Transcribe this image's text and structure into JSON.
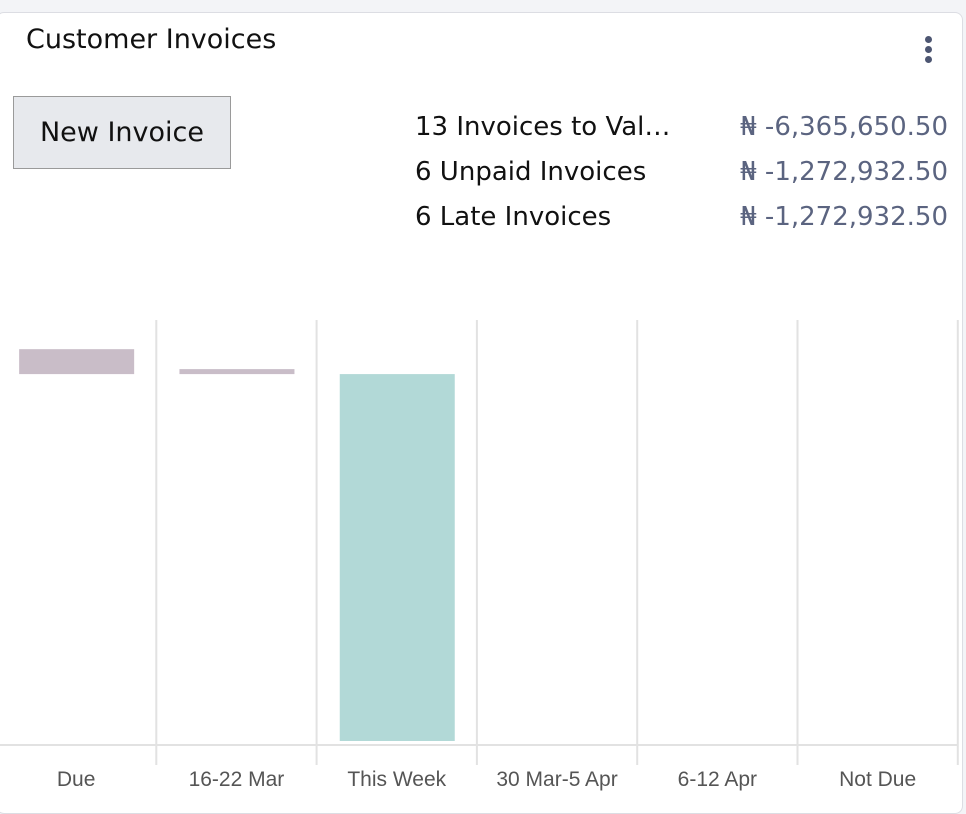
{
  "header": {
    "title": "Customer Invoices",
    "menu_icon": "kebab-vertical-icon"
  },
  "actions": {
    "new_invoice": "New Invoice"
  },
  "stats": [
    {
      "label": "13 Invoices to Validate",
      "display_label": "13 Invoices to Vali…",
      "amount": "₦ -6,365,650.50"
    },
    {
      "label": "6 Unpaid Invoices",
      "display_label": "6 Unpaid Invoices",
      "amount": "₦ -1,272,932.50"
    },
    {
      "label": "6 Late Invoices",
      "display_label": "6 Late Invoices",
      "amount": "₦ -1,272,932.50"
    }
  ],
  "chart_data": {
    "type": "bar",
    "title": "",
    "xlabel": "",
    "ylabel": "",
    "categories": [
      "Due",
      "16-22 Mar",
      "This Week",
      "30 Mar-5 Apr",
      "6-12 Apr",
      "Not Due"
    ],
    "values": [
      1060000,
      212000,
      -15600000,
      0,
      0,
      0
    ],
    "colors": [
      "#c9bdc8",
      "#c9bdc8",
      "#b2d9d7",
      "#c9bdc8",
      "#c9bdc8",
      "#c9bdc8"
    ],
    "ylim": [
      -15600000,
      2300000
    ],
    "grid": true
  }
}
